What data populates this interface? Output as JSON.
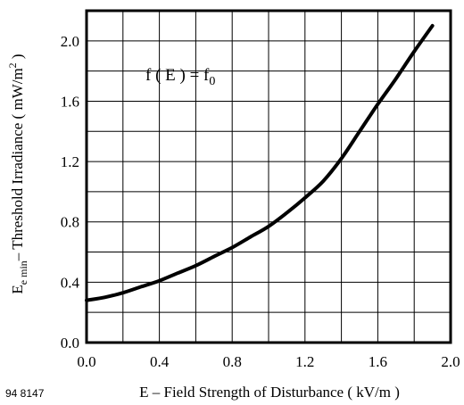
{
  "chart_data": {
    "type": "line",
    "title": "",
    "xlabel": "E – Field Strength of Disturbance ( kV/m )",
    "ylabel": {
      "symbol": "E",
      "subscript": "e min",
      "text": "– Threshold Irradiance ( mW/m",
      "superscript": "2",
      "close": " )"
    },
    "annotation": {
      "lhs": "f ( E ) = f",
      "subscript": "0"
    },
    "figure_id": "94 8147",
    "xlim": [
      0.0,
      2.0
    ],
    "ylim": [
      0.0,
      2.2
    ],
    "x_ticks": [
      "0.0",
      "0.4",
      "0.8",
      "1.2",
      "1.6",
      "2.0"
    ],
    "x_tick_values": [
      0.0,
      0.4,
      0.8,
      1.2,
      1.6,
      2.0
    ],
    "y_ticks": [
      "0.0",
      "0.4",
      "0.8",
      "1.2",
      "1.6",
      "2.0"
    ],
    "y_tick_values": [
      0.0,
      0.4,
      0.8,
      1.2,
      1.6,
      2.0
    ],
    "x_grid_step": 0.2,
    "y_grid_step": 0.2,
    "grid": true,
    "series": [
      {
        "x": [
          0.0,
          0.1,
          0.2,
          0.3,
          0.4,
          0.5,
          0.6,
          0.7,
          0.8,
          0.9,
          1.0,
          1.1,
          1.2,
          1.3,
          1.4,
          1.5,
          1.6,
          1.7,
          1.8,
          1.9
        ],
        "y": [
          0.28,
          0.3,
          0.33,
          0.37,
          0.41,
          0.46,
          0.51,
          0.57,
          0.63,
          0.7,
          0.77,
          0.86,
          0.96,
          1.07,
          1.22,
          1.4,
          1.58,
          1.75,
          1.93,
          2.1
        ]
      }
    ],
    "colors": {
      "line": "#000000",
      "grid": "#000000",
      "background": "#ffffff"
    }
  }
}
